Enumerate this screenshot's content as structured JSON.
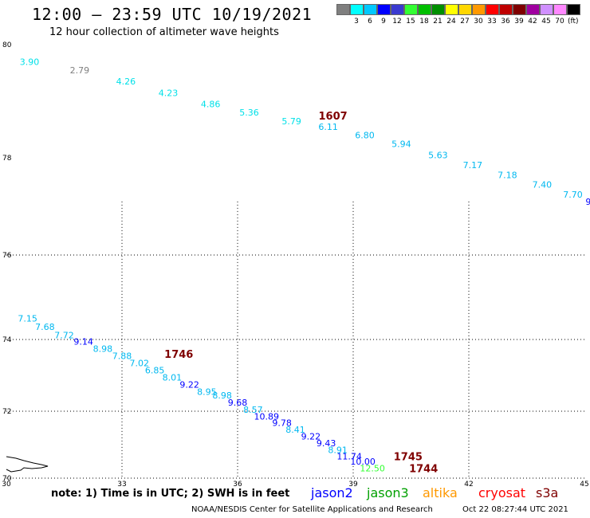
{
  "header": {
    "title": "12:00 – 23:59 UTC 10/19/2021",
    "subtitle": "12 hour collection of altimeter wave heights"
  },
  "scale": {
    "unit": "(ft)",
    "bins": [
      {
        "color": "#7f7f7f",
        "label": ""
      },
      {
        "color": "#00ffff",
        "label": "3"
      },
      {
        "color": "#00c8ff",
        "label": "6"
      },
      {
        "color": "#0000ff",
        "label": "9"
      },
      {
        "color": "#3a3ad0",
        "label": "12"
      },
      {
        "color": "#33ff33",
        "label": "15"
      },
      {
        "color": "#00bf00",
        "label": "18"
      },
      {
        "color": "#008f00",
        "label": "21"
      },
      {
        "color": "#ffff00",
        "label": "24"
      },
      {
        "color": "#ffd700",
        "label": "27"
      },
      {
        "color": "#ff9900",
        "label": "30"
      },
      {
        "color": "#ff0000",
        "label": "33"
      },
      {
        "color": "#bf0000",
        "label": "36"
      },
      {
        "color": "#7f0000",
        "label": "39"
      },
      {
        "color": "#a000a0",
        "label": "42"
      },
      {
        "color": "#d090ff",
        "label": "45"
      },
      {
        "color": "#ff88ff",
        "label": "70"
      },
      {
        "color": "#000000",
        "label": ""
      }
    ]
  },
  "axes": {
    "x_ticks": [
      "30",
      "33",
      "36",
      "39",
      "42",
      "45"
    ],
    "y_ticks": [
      "70",
      "72",
      "74",
      "76",
      "78",
      "80"
    ]
  },
  "chart_data": {
    "type": "scatter",
    "x_range": [
      30,
      45
    ],
    "y_range": [
      70,
      80
    ],
    "tracks": [
      {
        "time": "1607",
        "points": [
          {
            "lon": 30.6,
            "lat": 79.7,
            "swh": "3.90",
            "color": "#00e0e8"
          },
          {
            "lon": 31.9,
            "lat": 79.55,
            "swh": "2.79",
            "color": "#7f7f7f"
          },
          {
            "lon": 33.1,
            "lat": 79.35,
            "swh": "4.26",
            "color": "#00e0e8"
          },
          {
            "lon": 34.2,
            "lat": 79.15,
            "swh": "4.23",
            "color": "#00e0e8"
          },
          {
            "lon": 35.3,
            "lat": 78.95,
            "swh": "4.86",
            "color": "#00e0e8"
          },
          {
            "lon": 36.3,
            "lat": 78.8,
            "swh": "5.36",
            "color": "#00e0e8"
          },
          {
            "lon": 37.4,
            "lat": 78.65,
            "swh": "5.79",
            "color": "#00e0e8"
          },
          {
            "lon": 38.35,
            "lat": 78.55,
            "swh": "6.11",
            "color": "#00b8f0"
          },
          {
            "lon": 39.3,
            "lat": 78.4,
            "swh": "6.80",
            "color": "#00b8f0"
          },
          {
            "lon": 40.25,
            "lat": 78.25,
            "swh": "5.94",
            "color": "#00b8f0"
          },
          {
            "lon": 41.2,
            "lat": 78.05,
            "swh": "5.63",
            "color": "#00b8f0"
          },
          {
            "lon": 42.1,
            "lat": 77.85,
            "swh": "7.17",
            "color": "#00b8f0"
          },
          {
            "lon": 43.0,
            "lat": 77.65,
            "swh": "7.18",
            "color": "#00b8f0"
          },
          {
            "lon": 43.9,
            "lat": 77.45,
            "swh": "7.40",
            "color": "#00b8f0"
          },
          {
            "lon": 44.7,
            "lat": 77.25,
            "swh": "7.70",
            "color": "#00b8f0"
          },
          {
            "lon": 45.1,
            "lat": 77.1,
            "swh": "9",
            "color": "#0000ff"
          }
        ]
      },
      {
        "time": "1746",
        "points": [
          {
            "lon": 30.55,
            "lat": 74.5,
            "swh": "7.15",
            "color": "#00b8f0"
          },
          {
            "lon": 31.0,
            "lat": 74.3,
            "swh": "7.68",
            "color": "#00b8f0"
          },
          {
            "lon": 31.5,
            "lat": 74.1,
            "swh": "7.72",
            "color": "#00b8f0"
          },
          {
            "lon": 32.0,
            "lat": 73.95,
            "swh": "9.14",
            "color": "#0000ff"
          },
          {
            "lon": 32.5,
            "lat": 73.75,
            "swh": "8.98",
            "color": "#00b8f0"
          },
          {
            "lon": 33.0,
            "lat": 73.55,
            "swh": "7.88",
            "color": "#00b8f0"
          },
          {
            "lon": 33.45,
            "lat": 73.35,
            "swh": "7.02",
            "color": "#00b8f0"
          },
          {
            "lon": 33.85,
            "lat": 73.15,
            "swh": "6.85",
            "color": "#00b8f0"
          },
          {
            "lon": 34.3,
            "lat": 72.95,
            "swh": "8.01",
            "color": "#00b8f0"
          },
          {
            "lon": 34.75,
            "lat": 72.75,
            "swh": "9.22",
            "color": "#0000ff"
          },
          {
            "lon": 35.2,
            "lat": 72.55,
            "swh": "8.95",
            "color": "#00b8f0"
          },
          {
            "lon": 35.6,
            "lat": 72.45,
            "swh": "8.98",
            "color": "#00b8f0"
          },
          {
            "lon": 36.0,
            "lat": 72.25,
            "swh": "9.68",
            "color": "#0000ff"
          },
          {
            "lon": 36.4,
            "lat": 72.05,
            "swh": "8.57",
            "color": "#00b8f0"
          }
        ]
      },
      {
        "time": "1745",
        "points": [
          {
            "lon": 36.75,
            "lat": 71.85,
            "swh": "10.89",
            "color": "#0000ff"
          },
          {
            "lon": 37.15,
            "lat": 71.65,
            "swh": "9.78",
            "color": "#0000ff"
          },
          {
            "lon": 37.5,
            "lat": 71.45,
            "swh": "8.41",
            "color": "#00b8f0"
          },
          {
            "lon": 37.9,
            "lat": 71.25,
            "swh": "9.22",
            "color": "#0000ff"
          },
          {
            "lon": 38.3,
            "lat": 71.05,
            "swh": "9.43",
            "color": "#0000ff"
          },
          {
            "lon": 38.6,
            "lat": 70.85,
            "swh": "8.91",
            "color": "#00b8f0"
          },
          {
            "lon": 38.9,
            "lat": 70.65,
            "swh": "11.74",
            "color": "#0000ff"
          },
          {
            "lon": 39.25,
            "lat": 70.5,
            "swh": "10.00",
            "color": "#0000ff"
          }
        ]
      },
      {
        "time": "1744",
        "points": [
          {
            "lon": 39.5,
            "lat": 70.3,
            "swh": "12.50",
            "color": "#33ff33"
          }
        ]
      }
    ],
    "time_labels": [
      {
        "text": "1607",
        "lon": 38.1,
        "lat": 78.75,
        "color": "#7f0000"
      },
      {
        "text": "1746",
        "lon": 34.1,
        "lat": 73.6,
        "color": "#7f0000"
      },
      {
        "text": "1745",
        "lon": 40.05,
        "lat": 70.65,
        "color": "#7f0000"
      },
      {
        "text": "1744",
        "lon": 40.45,
        "lat": 70.3,
        "color": "#7f0000"
      }
    ]
  },
  "footer": {
    "note": "note:  1) Time is in UTC;  2) SWH is in feet",
    "missions": [
      {
        "name": "jason2",
        "color": "#0000ff"
      },
      {
        "name": "jason3",
        "color": "#00a000"
      },
      {
        "name": "altika",
        "color": "#ff9900"
      },
      {
        "name": "cryosat",
        "color": "#ff0000"
      },
      {
        "name": "s3a",
        "color": "#7f0000"
      }
    ],
    "credit": "NOAA/NESDIS Center for Satellite Applications and Research",
    "generated": "Oct 22 08:27:44 UTC 2021"
  }
}
